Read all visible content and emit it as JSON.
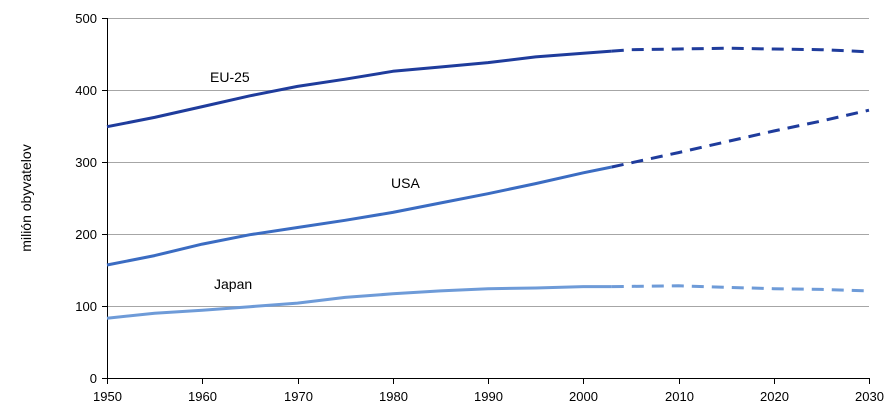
{
  "chart_data": {
    "type": "line",
    "ylabel": "milión obyvatelov",
    "xlim": [
      1950,
      2030
    ],
    "ylim": [
      0,
      500
    ],
    "x_ticks": [
      1950,
      1960,
      1970,
      1980,
      1990,
      2000,
      2010,
      2020,
      2030
    ],
    "y_ticks": [
      0,
      100,
      200,
      300,
      400,
      500
    ],
    "grid": true,
    "series": [
      {
        "name": "EU-25",
        "color": "#1f3c9c",
        "projection_color": "#1f3c9c",
        "x": [
          1950,
          1955,
          1960,
          1965,
          1970,
          1975,
          1980,
          1985,
          1990,
          1995,
          2000,
          2003
        ],
        "y": [
          349,
          362,
          377,
          392,
          405,
          415,
          426,
          432,
          438,
          446,
          451,
          454
        ],
        "projection": {
          "x": [
            2003,
            2005,
            2010,
            2015,
            2020,
            2025,
            2030
          ],
          "y": [
            454,
            456,
            457,
            458,
            457,
            456,
            453
          ]
        }
      },
      {
        "name": "USA",
        "color": "#3b6cc2",
        "projection_color": "#1f3c9c",
        "x": [
          1950,
          1955,
          1960,
          1965,
          1970,
          1975,
          1980,
          1985,
          1990,
          1995,
          2000,
          2003
        ],
        "y": [
          157,
          170,
          186,
          199,
          209,
          219,
          230,
          243,
          256,
          270,
          285,
          293
        ],
        "projection": {
          "x": [
            2003,
            2010,
            2015,
            2020,
            2025,
            2030
          ],
          "y": [
            293,
            313,
            328,
            343,
            357,
            372
          ]
        }
      },
      {
        "name": "Japan",
        "color": "#6e9bd8",
        "projection_color": "#6e9bd8",
        "x": [
          1950,
          1955,
          1960,
          1965,
          1970,
          1975,
          1980,
          1985,
          1990,
          1995,
          2000,
          2003
        ],
        "y": [
          83,
          90,
          94,
          99,
          104,
          112,
          117,
          121,
          124,
          125,
          127,
          127
        ],
        "projection": {
          "x": [
            2003,
            2010,
            2015,
            2020,
            2025,
            2030
          ],
          "y": [
            127,
            128,
            126,
            124,
            123,
            121
          ]
        }
      }
    ]
  }
}
